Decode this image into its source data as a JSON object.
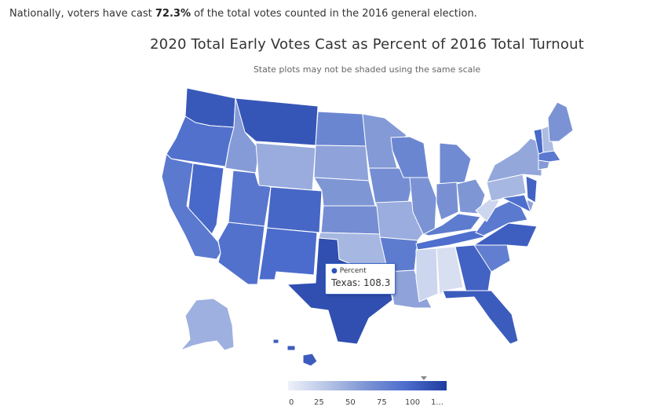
{
  "intro": {
    "prefix": "Nationally, voters have cast ",
    "value": "72.3%",
    "suffix": " of the total votes counted in the 2016 general election."
  },
  "chart_data": {
    "type": "choropleth",
    "title": "2020 Total Early Votes Cast as Percent of 2016 Total Turnout",
    "subtitle": "State plots may not be shaded using the same scale",
    "series_name": "Percent",
    "tooltip": {
      "series": "Percent",
      "state": "Texas",
      "value": 108.3
    },
    "legend": {
      "min": 0,
      "max": 120,
      "ticks": [
        "0",
        "25",
        "50",
        "75",
        "100",
        "1..."
      ]
    },
    "states": [
      {
        "abbr": "WA",
        "value": 102
      },
      {
        "abbr": "OR",
        "value": 86
      },
      {
        "abbr": "CA",
        "value": 80
      },
      {
        "abbr": "ID",
        "value": 55
      },
      {
        "abbr": "NV",
        "value": 92
      },
      {
        "abbr": "UT",
        "value": 82
      },
      {
        "abbr": "AZ",
        "value": 86
      },
      {
        "abbr": "MT",
        "value": 104
      },
      {
        "abbr": "WY",
        "value": 45
      },
      {
        "abbr": "CO",
        "value": 93
      },
      {
        "abbr": "NM",
        "value": 90
      },
      {
        "abbr": "ND",
        "value": 70
      },
      {
        "abbr": "SD",
        "value": 50
      },
      {
        "abbr": "NE",
        "value": 58
      },
      {
        "abbr": "KS",
        "value": 64
      },
      {
        "abbr": "OK",
        "value": 38
      },
      {
        "abbr": "TX",
        "value": 108.3
      },
      {
        "abbr": "MN",
        "value": 56
      },
      {
        "abbr": "IA",
        "value": 64
      },
      {
        "abbr": "MO",
        "value": 44
      },
      {
        "abbr": "AR",
        "value": 78
      },
      {
        "abbr": "LA",
        "value": 50
      },
      {
        "abbr": "WI",
        "value": 70
      },
      {
        "abbr": "IL",
        "value": 60
      },
      {
        "abbr": "MI",
        "value": 66
      },
      {
        "abbr": "IN",
        "value": 62
      },
      {
        "abbr": "OH",
        "value": 58
      },
      {
        "abbr": "KY",
        "value": 78
      },
      {
        "abbr": "TN",
        "value": 88
      },
      {
        "abbr": "MS",
        "value": 18
      },
      {
        "abbr": "AL",
        "value": 12
      },
      {
        "abbr": "GA",
        "value": 96
      },
      {
        "abbr": "FL",
        "value": 100
      },
      {
        "abbr": "SC",
        "value": 76
      },
      {
        "abbr": "NC",
        "value": 98
      },
      {
        "abbr": "VA",
        "value": 80
      },
      {
        "abbr": "WV",
        "value": 18
      },
      {
        "abbr": "PA",
        "value": 38
      },
      {
        "abbr": "NY",
        "value": 48
      },
      {
        "abbr": "VT",
        "value": 92
      },
      {
        "abbr": "NH",
        "value": 35
      },
      {
        "abbr": "ME",
        "value": 60
      },
      {
        "abbr": "MA",
        "value": 80
      },
      {
        "abbr": "CT",
        "value": 56
      },
      {
        "abbr": "NJ",
        "value": 96
      },
      {
        "abbr": "DE",
        "value": 50
      },
      {
        "abbr": "MD",
        "value": 88
      },
      {
        "abbr": "AK",
        "value": 42
      },
      {
        "abbr": "HI",
        "value": 100
      }
    ]
  }
}
